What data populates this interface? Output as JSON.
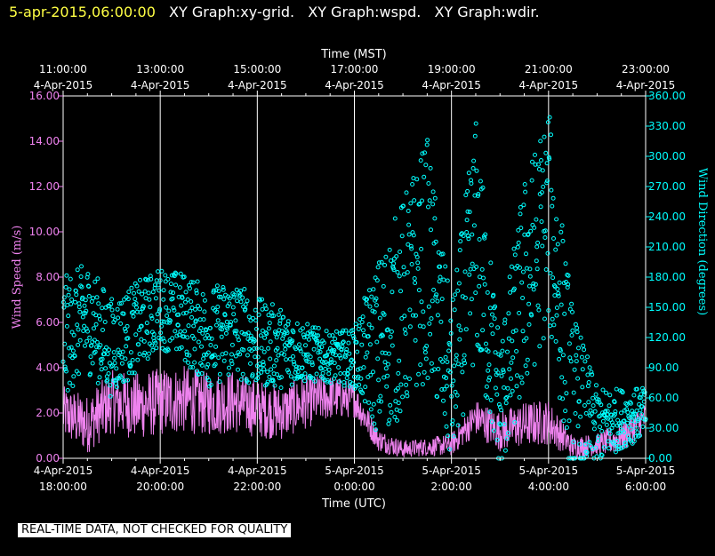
{
  "header": {
    "timestamp": "5-apr-2015,06:00:00",
    "graphs": [
      "XY Graph:xy-grid.",
      "XY Graph:wspd.",
      "XY Graph:wdir."
    ]
  },
  "footer": {
    "note": "REAL-TIME DATA, NOT CHECKED FOR QUALITY"
  },
  "colors": {
    "wspd": "#ee82ee",
    "wdir": "#00ffff",
    "text": "#ffffff",
    "grid": "#ffffff",
    "background": "#000000"
  },
  "chart_data": {
    "type": "line",
    "top_axis": {
      "label": "Time (MST)",
      "ticks": [
        {
          "time": "11:00:00",
          "date": "4-Apr-2015"
        },
        {
          "time": "13:00:00",
          "date": "4-Apr-2015"
        },
        {
          "time": "15:00:00",
          "date": "4-Apr-2015"
        },
        {
          "time": "17:00:00",
          "date": "4-Apr-2015"
        },
        {
          "time": "19:00:00",
          "date": "4-Apr-2015"
        },
        {
          "time": "21:00:00",
          "date": "4-Apr-2015"
        },
        {
          "time": "23:00:00",
          "date": "4-Apr-2015"
        }
      ]
    },
    "bottom_axis": {
      "label": "Time (UTC)",
      "ticks": [
        {
          "date": "4-Apr-2015",
          "time": "18:00:00"
        },
        {
          "date": "4-Apr-2015",
          "time": "20:00:00"
        },
        {
          "date": "4-Apr-2015",
          "time": "22:00:00"
        },
        {
          "date": "5-Apr-2015",
          "time": "0:00:00"
        },
        {
          "date": "5-Apr-2015",
          "time": "2:00:00"
        },
        {
          "date": "5-Apr-2015",
          "time": "4:00:00"
        },
        {
          "date": "5-Apr-2015",
          "time": "6:00:00"
        }
      ],
      "x_hours_utc": [
        18,
        20,
        22,
        24,
        26,
        28,
        30
      ],
      "xlim": [
        18,
        30
      ]
    },
    "left_axis": {
      "label": "Wind Speed (m/s)",
      "ticks": [
        "0.00",
        "2.00",
        "4.00",
        "6.00",
        "8.00",
        "10.00",
        "12.00",
        "14.00",
        "16.00"
      ],
      "ylim": [
        0,
        16
      ]
    },
    "right_axis": {
      "label": "Wind Direction (degrees)",
      "ticks": [
        "0.00",
        "30.00",
        "60.00",
        "90.00",
        "120.00",
        "150.00",
        "180.00",
        "210.00",
        "240.00",
        "270.00",
        "300.00",
        "330.00",
        "360.00"
      ],
      "ylim": [
        0,
        360
      ]
    },
    "grid": "vertical lines at major ticks",
    "series": [
      {
        "key": "wspd",
        "style": "line",
        "axis": "left",
        "x": [
          18.0,
          18.5,
          19.0,
          19.5,
          20.0,
          20.5,
          21.0,
          21.5,
          22.0,
          22.5,
          23.0,
          23.5,
          24.0,
          24.5,
          25.0,
          25.5,
          26.0,
          26.5,
          27.0,
          27.5,
          28.0,
          28.5,
          29.0,
          29.5,
          30.0
        ],
        "values": [
          2.0,
          1.5,
          2.5,
          2.3,
          2.5,
          2.6,
          2.4,
          2.5,
          2.2,
          2.0,
          2.5,
          2.7,
          2.6,
          0.8,
          0.4,
          0.5,
          0.6,
          1.8,
          1.2,
          1.5,
          1.6,
          0.5,
          0.6,
          0.9,
          1.8
        ],
        "spread": [
          1.2,
          1.3,
          1.4,
          1.5,
          1.5,
          1.5,
          1.4,
          1.4,
          1.3,
          1.2,
          1.2,
          1.0,
          0.8,
          0.5,
          0.4,
          0.4,
          0.5,
          0.8,
          0.9,
          1.0,
          1.0,
          0.5,
          0.5,
          0.7,
          0.7
        ]
      },
      {
        "key": "wdir",
        "style": "scatter-circles",
        "axis": "right",
        "x": [
          18.0,
          18.5,
          19.0,
          19.5,
          20.0,
          20.5,
          21.0,
          21.5,
          22.0,
          22.5,
          23.0,
          23.5,
          24.0,
          24.5,
          25.0,
          25.5,
          26.0,
          26.5,
          27.0,
          27.5,
          28.0,
          28.5,
          29.0,
          29.5,
          30.0
        ],
        "values": [
          120,
          140,
          110,
          130,
          150,
          140,
          120,
          130,
          115,
          110,
          105,
          100,
          100,
          110,
          150,
          200,
          70,
          220,
          50,
          170,
          240,
          60,
          30,
          40,
          45
        ],
        "spread": [
          60,
          55,
          50,
          45,
          40,
          45,
          50,
          50,
          45,
          40,
          30,
          25,
          30,
          90,
          110,
          120,
          80,
          120,
          70,
          110,
          110,
          90,
          40,
          30,
          25
        ]
      }
    ]
  }
}
